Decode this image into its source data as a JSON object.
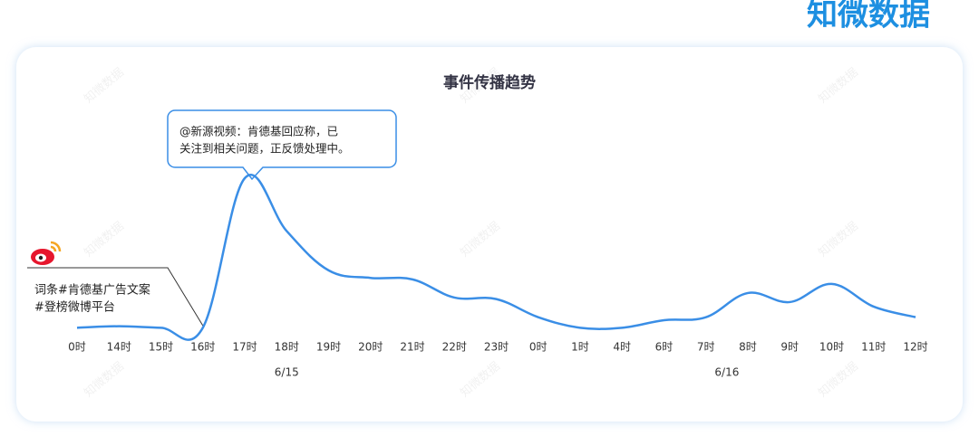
{
  "brand": "知微数据",
  "watermark": "知微数据",
  "chart_data": {
    "type": "line",
    "title": "事件传播趋势",
    "categories": [
      "0时",
      "14时",
      "15时",
      "16时",
      "17时",
      "18时",
      "19时",
      "20时",
      "21时",
      "22时",
      "23时",
      "0时",
      "1时",
      "4时",
      "6时",
      "7时",
      "8时",
      "9时",
      "10时",
      "11时",
      "12时"
    ],
    "date_labels": [
      "6/15",
      "6/16"
    ],
    "series": [
      {
        "color": "#3a8ee6",
        "values": [
          1,
          2,
          1,
          1,
          100,
          65,
          39,
          34,
          33,
          21,
          20,
          8,
          1,
          1,
          6,
          8,
          24,
          18,
          30,
          15,
          8
        ]
      }
    ],
    "ylim": [
      0,
      100
    ],
    "annotations": [
      {
        "lines": [
          "@新源视频：肯德基回应称，已",
          "关注到相关问题，正反馈处理中。"
        ]
      },
      {
        "lines": [
          "词条#肯德基广告文案",
          "#登榜微博平台"
        ]
      }
    ]
  }
}
